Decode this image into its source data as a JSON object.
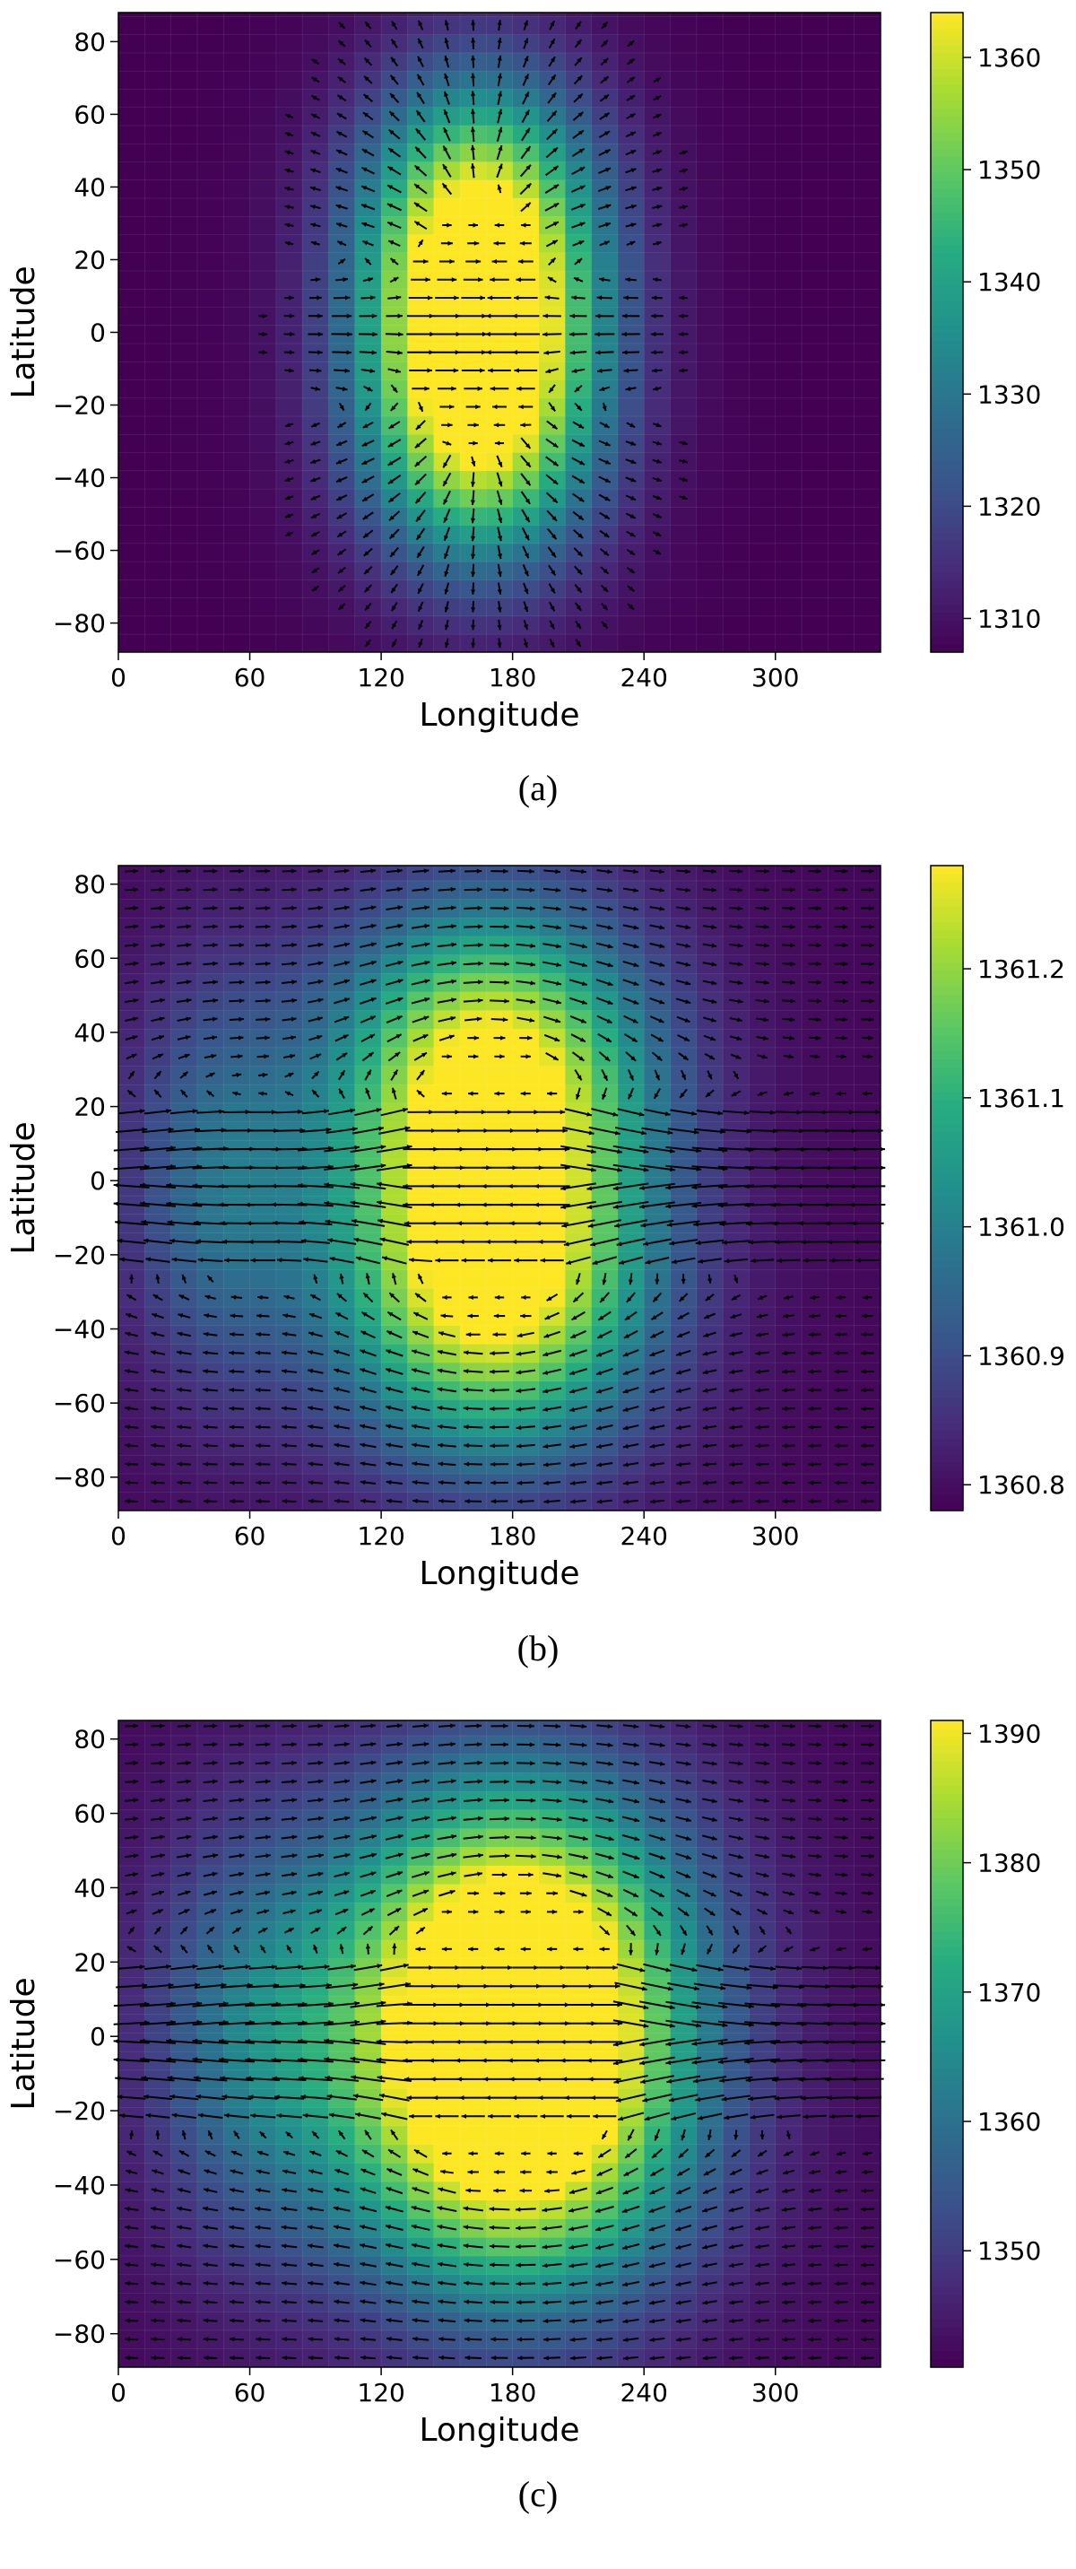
{
  "chart_data": [
    {
      "type": "heatmap",
      "subtype": "heatmap-with-vector-field",
      "caption": "(a)",
      "xlabel": "Longitude",
      "ylabel": "Latitude",
      "xlim": [
        0,
        348
      ],
      "ylim": [
        -88,
        88
      ],
      "xticks": [
        "0",
        "60",
        "120",
        "180",
        "240",
        "300"
      ],
      "yticks": [
        "80",
        "60",
        "40",
        "20",
        "0",
        "−20",
        "−40",
        "−60",
        "−80"
      ],
      "colorbar": {
        "min": 1307,
        "max": 1364,
        "ticks": [
          "1310",
          "1320",
          "1330",
          "1340",
          "1350",
          "1360"
        ]
      },
      "colormap": "viridis",
      "grid_step": {
        "lon": 12,
        "lat": 5
      },
      "field": {
        "base": 1307,
        "peak": 1364,
        "blobs": [
          {
            "lon": 165,
            "lat": 28,
            "slon": 38,
            "slat": 30,
            "amp": 1.0
          },
          {
            "lon": 165,
            "lat": -22,
            "slon": 38,
            "slat": 30,
            "amp": 1.0
          }
        ]
      },
      "vectors": "flow converging toward the hot region, strongest near the equator between longitudes 75 and 260"
    },
    {
      "type": "heatmap",
      "subtype": "heatmap-with-vector-field",
      "caption": "(b)",
      "xlabel": "Longitude",
      "ylabel": "Latitude",
      "xlim": [
        0,
        348
      ],
      "ylim": [
        -89,
        85
      ],
      "xticks": [
        "0",
        "60",
        "120",
        "180",
        "240",
        "300"
      ],
      "yticks": [
        "80",
        "60",
        "40",
        "20",
        "0",
        "−20",
        "−40",
        "−60",
        "−80"
      ],
      "colorbar": {
        "min": 1360.78,
        "max": 1361.28,
        "ticks": [
          "1360.8",
          "1360.9",
          "1361.0",
          "1361.1",
          "1361.2"
        ]
      },
      "colormap": "viridis",
      "grid_step": {
        "lon": 12,
        "lat": 5
      },
      "field": {
        "base": 1360.79,
        "peak": 1361.28,
        "blobs": [
          {
            "lon": 170,
            "lat": 30,
            "slon": 50,
            "slat": 32,
            "amp": 1.0
          },
          {
            "lon": 170,
            "lat": -30,
            "slon": 50,
            "slat": 32,
            "amp": 1.0
          },
          {
            "lon": 45,
            "lat": 0,
            "slon": 30,
            "slat": 40,
            "amp": 0.35
          }
        ]
      },
      "vectors": "rotating gyres around the hot centre, strong zonal jets along the equator"
    },
    {
      "type": "heatmap",
      "subtype": "heatmap-with-vector-field",
      "caption": "(c)",
      "xlabel": "Longitude",
      "ylabel": "Latitude",
      "xlim": [
        0,
        348
      ],
      "ylim": [
        -89,
        85
      ],
      "xticks": [
        "0",
        "60",
        "120",
        "180",
        "240",
        "300"
      ],
      "yticks": [
        "80",
        "60",
        "40",
        "20",
        "0",
        "−20",
        "−40",
        "−60",
        "−80"
      ],
      "colorbar": {
        "min": 1341,
        "max": 1391,
        "ticks": [
          "1350",
          "1360",
          "1370",
          "1380",
          "1390"
        ]
      },
      "colormap": "viridis",
      "grid_step": {
        "lon": 12,
        "lat": 5
      },
      "field": {
        "base": 1342,
        "peak": 1391,
        "blobs": [
          {
            "lon": 180,
            "lat": 25,
            "slon": 55,
            "slat": 35,
            "amp": 1.0
          },
          {
            "lon": 180,
            "lat": -25,
            "slon": 55,
            "slat": 35,
            "amp": 1.0
          },
          {
            "lon": 60,
            "lat": 0,
            "slon": 35,
            "slat": 40,
            "amp": 0.35
          }
        ]
      },
      "vectors": "rotating gyres around the hot centre, strong zonal jets along the equator"
    }
  ]
}
